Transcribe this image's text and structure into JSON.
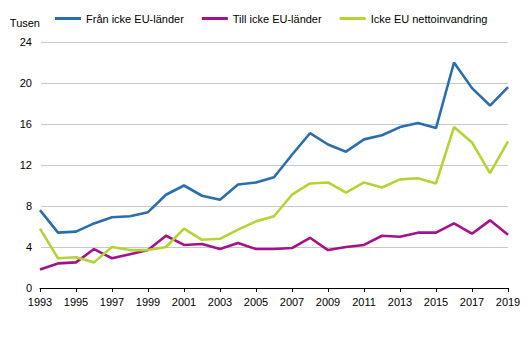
{
  "chart_data": {
    "type": "line",
    "y_label": "Tusen",
    "x": [
      1993,
      1994,
      1995,
      1996,
      1997,
      1998,
      1999,
      2000,
      2001,
      2002,
      2003,
      2004,
      2005,
      2006,
      2007,
      2008,
      2009,
      2010,
      2011,
      2012,
      2013,
      2014,
      2015,
      2016,
      2017,
      2018,
      2019
    ],
    "series": [
      {
        "name": "Från icke EU-länder",
        "color": "#2a6ead",
        "values": [
          7.6,
          5.4,
          5.5,
          6.3,
          6.9,
          7.0,
          7.4,
          9.1,
          10.0,
          9.0,
          8.6,
          10.1,
          10.3,
          10.8,
          13.0,
          15.1,
          14.0,
          13.3,
          14.5,
          14.9,
          15.7,
          16.1,
          15.6,
          22.0,
          19.5,
          17.8,
          19.6
        ]
      },
      {
        "name": "Till icke EU-länder",
        "color": "#a3128a",
        "values": [
          1.8,
          2.4,
          2.5,
          3.8,
          2.9,
          3.3,
          3.7,
          5.1,
          4.2,
          4.3,
          3.8,
          4.4,
          3.8,
          3.8,
          3.9,
          4.9,
          3.7,
          4.0,
          4.2,
          5.1,
          5.0,
          5.4,
          5.4,
          6.3,
          5.3,
          6.6,
          5.2
        ]
      },
      {
        "name": "Icke EU nettoinvandring",
        "color": "#b5d334",
        "values": [
          5.8,
          2.9,
          3.0,
          2.5,
          4.0,
          3.7,
          3.7,
          4.0,
          5.8,
          4.7,
          4.8,
          5.7,
          6.5,
          7.0,
          9.1,
          10.2,
          10.3,
          9.3,
          10.3,
          9.8,
          10.6,
          10.7,
          10.2,
          15.7,
          14.2,
          11.2,
          14.3
        ]
      }
    ],
    "xlim": [
      1993,
      2019
    ],
    "xticks": [
      1993,
      1995,
      1997,
      1999,
      2001,
      2003,
      2005,
      2007,
      2009,
      2011,
      2013,
      2015,
      2017,
      2019
    ],
    "ylim": [
      0,
      24
    ],
    "yticks": [
      0,
      4,
      8,
      12,
      16,
      20,
      24
    ],
    "grid": true,
    "legend": "upper left"
  }
}
